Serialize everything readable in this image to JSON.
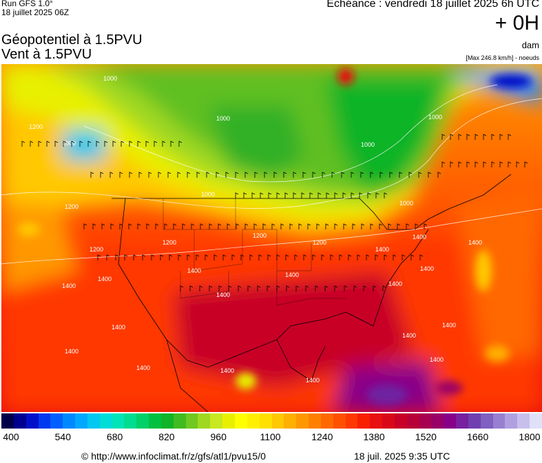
{
  "header": {
    "run_label": "Run GFS 1.0°",
    "run_date": "18 juillet 2025 06Z",
    "title_line1": "Géopotentiel à 1.5PVU",
    "title_line2": "Vent à 1.5PVU",
    "echeance": "Echéance : vendredi 18 juillet 2025 6h UTC",
    "offset": "+ 0H",
    "unit": "dam",
    "max_wind": "[Max 246.8 km/h] - noeuds"
  },
  "colorbar": {
    "tick_labels": [
      "400",
      "540",
      "680",
      "820",
      "960",
      "1100",
      "1240",
      "1380",
      "1520",
      "1660",
      "1800"
    ],
    "colors": [
      "#00004a",
      "#000090",
      "#0010c8",
      "#0038f0",
      "#0060ff",
      "#0088ff",
      "#00a8ff",
      "#00c8f0",
      "#00dcd8",
      "#00e4b8",
      "#00dc90",
      "#00d068",
      "#00c040",
      "#10b428",
      "#40bc20",
      "#70c820",
      "#a0d820",
      "#c8e820",
      "#e8f000",
      "#ffff00",
      "#fff000",
      "#ffe000",
      "#ffc800",
      "#ffb000",
      "#ff9800",
      "#ff8000",
      "#ff6800",
      "#ff5000",
      "#ff3800",
      "#f82000",
      "#e81010",
      "#d80818",
      "#c80028",
      "#b80038",
      "#a80050",
      "#980068",
      "#880088",
      "#7820a0",
      "#7040b0",
      "#8060c0",
      "#9880d0",
      "#b0a0e0",
      "#c8c0ec",
      "#e0e0f8"
    ]
  },
  "map": {
    "contour_labels": [
      "1000",
      "1000",
      "1000",
      "1000",
      "1000",
      "1000",
      "1000",
      "1200",
      "1200",
      "1200",
      "1200",
      "1200",
      "1200",
      "1400",
      "1400",
      "1400",
      "1400",
      "1400",
      "1400",
      "1400",
      "1400",
      "1400",
      "1400",
      "1400",
      "1400",
      "1400",
      "1400",
      "1400",
      "1400",
      "1400",
      "1400"
    ]
  },
  "footer": {
    "copyright": "© http://www.infoclimat.fr/z/gfs/atl1/pvu15/0",
    "timestamp": "18 juil. 2025  9:35 UTC"
  }
}
